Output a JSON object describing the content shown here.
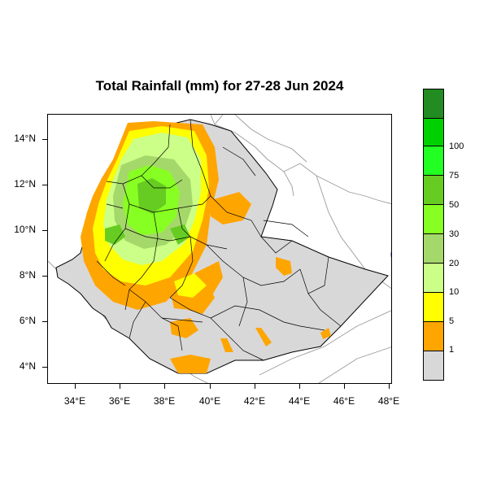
{
  "title": "Total Rainfall (mm) for 27-28 Jun 2024",
  "y_ticks": [
    "14°N",
    "12°N",
    "10°N",
    "8°N",
    "6°N",
    "4°N"
  ],
  "x_ticks": [
    "34°E",
    "36°E",
    "38°E",
    "40°E",
    "42°E",
    "44°E",
    "46°E",
    "48°E"
  ],
  "legend": {
    "colors": [
      "#d8d8d8",
      "#ffa500",
      "#ffff00",
      "#ccff88",
      "#a5d86a",
      "#88ff22",
      "#66cc22",
      "#22ff22",
      "#00d000",
      "#228b22"
    ],
    "labels": [
      "1",
      "5",
      "10",
      "20",
      "30",
      "50",
      "75",
      "100"
    ]
  },
  "map": {
    "lon_range": [
      33,
      48.2
    ],
    "lat_range": [
      3.2,
      15.2
    ],
    "base_color": "#d8d8d8",
    "logo_icon": "ethiopian-meteorology-institute-logo"
  }
}
